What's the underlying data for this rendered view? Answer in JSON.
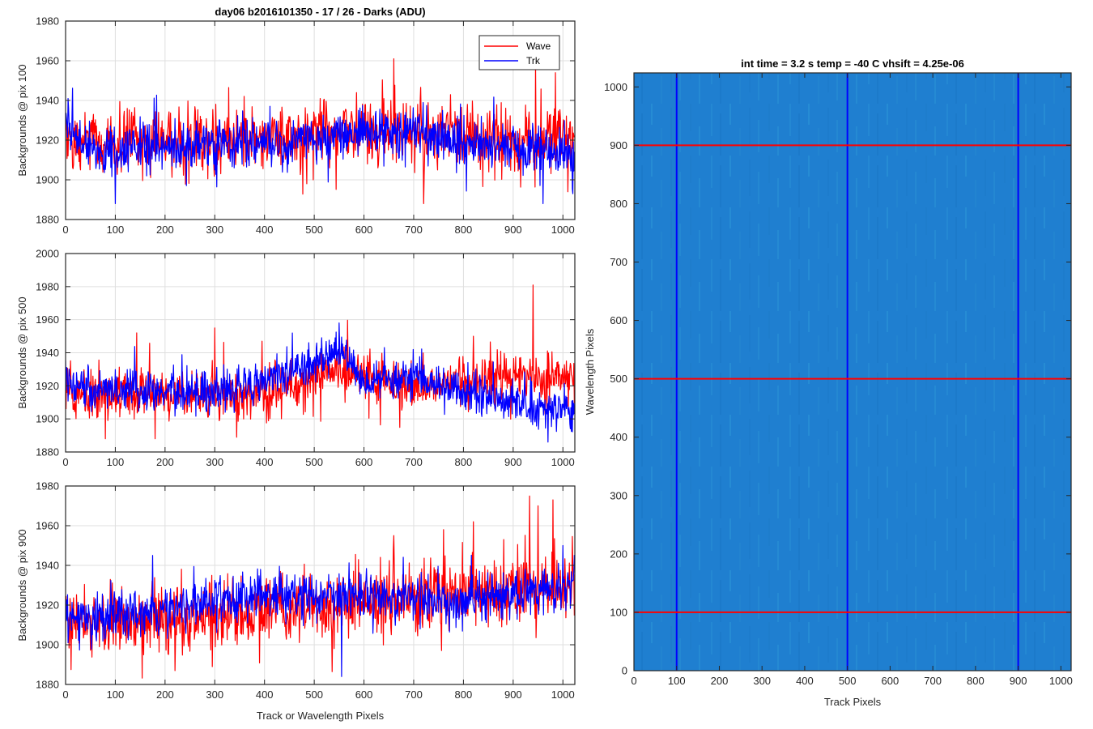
{
  "chart_data": [
    {
      "type": "line",
      "title": "day06 b2016101350 - 17 / 26 - Darks (ADU)",
      "xlabel": "",
      "ylabel": "Backgrounds @ pix 100",
      "xlim": [
        0,
        1024
      ],
      "ylim": [
        1880,
        1980
      ],
      "xticks": [
        0,
        100,
        200,
        300,
        400,
        500,
        600,
        700,
        800,
        900,
        1000
      ],
      "yticks": [
        1880,
        1900,
        1920,
        1940,
        1960,
        1980
      ],
      "grid": true,
      "legend": {
        "position": "top-right",
        "entries": [
          "Wave",
          "Trk"
        ]
      },
      "series": [
        {
          "name": "Wave",
          "color": "#ff0000",
          "mean": 1918,
          "noise": 8,
          "trend": [
            [
              0,
              1918
            ],
            [
              400,
              1920
            ],
            [
              600,
              1924
            ],
            [
              800,
              1922
            ],
            [
              1024,
              1920
            ]
          ],
          "peaks": [
            [
              660,
              1961
            ],
            [
              945,
              1958
            ],
            [
              985,
              1954
            ],
            [
              720,
              1888
            ],
            [
              1010,
              1894
            ]
          ]
        },
        {
          "name": "Trk",
          "color": "#0000ff",
          "mean": 1915,
          "noise": 6,
          "trend": [
            [
              0,
              1930
            ],
            [
              30,
              1915
            ],
            [
              400,
              1918
            ],
            [
              550,
              1922
            ],
            [
              700,
              1925
            ],
            [
              800,
              1918
            ],
            [
              1024,
              1915
            ]
          ],
          "peaks": [
            [
              5,
              1941
            ],
            [
              960,
              1888
            ],
            [
              100,
              1888
            ],
            [
              1020,
              1893
            ]
          ]
        }
      ]
    },
    {
      "type": "line",
      "title": "",
      "xlabel": "",
      "ylabel": "Backgrounds @ pix 500",
      "xlim": [
        0,
        1024
      ],
      "ylim": [
        1880,
        2000
      ],
      "xticks": [
        0,
        100,
        200,
        300,
        400,
        500,
        600,
        700,
        800,
        900,
        1000
      ],
      "yticks": [
        1880,
        1900,
        1920,
        1940,
        1960,
        1980,
        2000
      ],
      "grid": true,
      "series": [
        {
          "name": "Wave",
          "color": "#ff0000",
          "mean": 1916,
          "noise": 7,
          "trend": [
            [
              0,
              1915
            ],
            [
              400,
              1915
            ],
            [
              550,
              1930
            ],
            [
              700,
              1918
            ],
            [
              850,
              1925
            ],
            [
              1024,
              1922
            ]
          ],
          "peaks": [
            [
              940,
              1981
            ],
            [
              143,
              1952
            ],
            [
              820,
              1950
            ],
            [
              300,
              1955
            ],
            [
              80,
              1888
            ],
            [
              180,
              1888
            ]
          ]
        },
        {
          "name": "Trk",
          "color": "#0000ff",
          "mean": 1915,
          "noise": 6,
          "trend": [
            [
              0,
              1920
            ],
            [
              300,
              1915
            ],
            [
              480,
              1930
            ],
            [
              550,
              1942
            ],
            [
              600,
              1920
            ],
            [
              700,
              1928
            ],
            [
              800,
              1915
            ],
            [
              1024,
              1905
            ]
          ],
          "peaks": [
            [
              550,
              1958
            ],
            [
              970,
              1886
            ],
            [
              1015,
              1894
            ]
          ]
        }
      ]
    },
    {
      "type": "line",
      "title": "",
      "xlabel": "Track or Wavelength Pixels",
      "ylabel": "Backgrounds @ pix 900",
      "xlim": [
        0,
        1024
      ],
      "ylim": [
        1880,
        1980
      ],
      "xticks": [
        0,
        100,
        200,
        300,
        400,
        500,
        600,
        700,
        800,
        900,
        1000
      ],
      "yticks": [
        1880,
        1900,
        1920,
        1940,
        1960,
        1980
      ],
      "grid": true,
      "series": [
        {
          "name": "Wave",
          "color": "#ff0000",
          "mean": 1915,
          "noise": 8,
          "trend": [
            [
              0,
              1912
            ],
            [
              300,
              1913
            ],
            [
              500,
              1920
            ],
            [
              800,
              1925
            ],
            [
              1024,
              1930
            ]
          ],
          "peaks": [
            [
              980,
              1973
            ],
            [
              950,
              1970
            ],
            [
              820,
              1962
            ],
            [
              760,
              1958
            ],
            [
              660,
              1955
            ],
            [
              220,
              1887
            ],
            [
              295,
              1889
            ]
          ]
        },
        {
          "name": "Trk",
          "color": "#0000ff",
          "mean": 1918,
          "noise": 6,
          "trend": [
            [
              0,
              1912
            ],
            [
              200,
              1918
            ],
            [
              400,
              1925
            ],
            [
              600,
              1925
            ],
            [
              800,
              1922
            ],
            [
              1024,
              1930
            ]
          ],
          "peaks": [
            [
              555,
              1884
            ],
            [
              1000,
              1950
            ],
            [
              175,
              1945
            ]
          ]
        }
      ]
    },
    {
      "type": "heatmap",
      "title": "int time = 3.2 s   temp = -40 C   vhsift = 4.25e-06",
      "xlabel": "Track Pixels",
      "ylabel": "Wavelength Pixels",
      "xlim": [
        0,
        1024
      ],
      "ylim": [
        0,
        1024
      ],
      "xticks": [
        0,
        100,
        200,
        300,
        400,
        500,
        600,
        700,
        800,
        900,
        1000
      ],
      "yticks": [
        0,
        100,
        200,
        300,
        400,
        500,
        600,
        700,
        800,
        900,
        1000
      ],
      "grid": false,
      "base_color": "#1f7fd0",
      "vertical_lines": {
        "color": "#0000ff",
        "x": [
          100,
          500,
          900
        ]
      },
      "horizontal_lines": {
        "color": "#ff0000",
        "y": [
          100,
          500,
          900
        ]
      }
    }
  ]
}
